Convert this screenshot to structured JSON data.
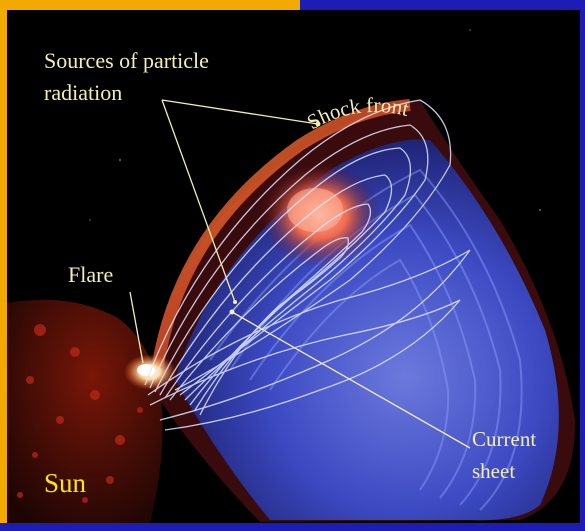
{
  "labels": {
    "sources_line1": "Sources of particle",
    "sources_line2": "radiation",
    "shock_front": "Shock front",
    "flare": "Flare",
    "current_line1": "Current",
    "current_line2": "sheet",
    "sun": "Sun"
  },
  "colors": {
    "frame_orange": "#f2a900",
    "frame_blue": "#1d1db5",
    "label_text": "#f4eeb4",
    "sun_label": "#ffe600",
    "field_lines": "#dfe6ff"
  }
}
